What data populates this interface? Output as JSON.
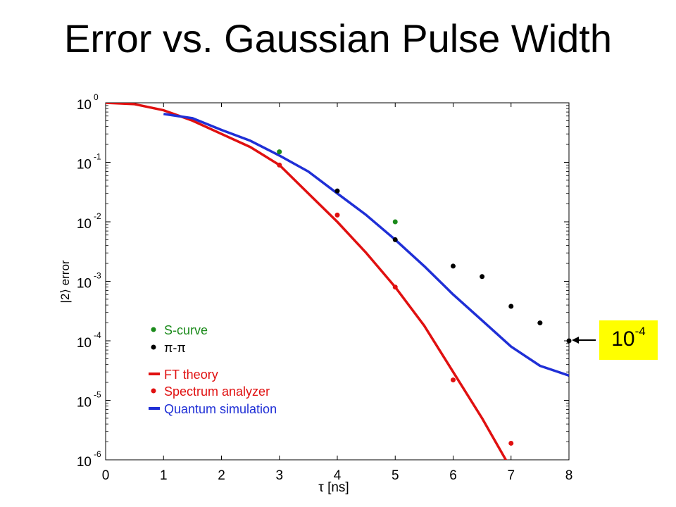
{
  "page": {
    "title": "Error vs. Gaussian Pulse Width"
  },
  "callout": {
    "base": "10",
    "exponent": "-4"
  },
  "colors": {
    "green": "#1a8a1a",
    "black": "#000000",
    "red": "#e01010",
    "blue": "#1f2fd6",
    "callout_bg": "#ffff00"
  },
  "chart_data": {
    "type": "scatter",
    "title": "",
    "xlabel": "τ [ns]",
    "ylabel": "|2⟩ error",
    "xlim": [
      0,
      8
    ],
    "ylim": [
      1e-06,
      1
    ],
    "yscale": "log",
    "grid": false,
    "legend_position": "lower-left",
    "x_ticks": [
      "0",
      "1",
      "2",
      "3",
      "4",
      "5",
      "6",
      "7",
      "8"
    ],
    "y_ticks": [
      {
        "base": "10",
        "exp": "0"
      },
      {
        "base": "10",
        "exp": "-1"
      },
      {
        "base": "10",
        "exp": "-2"
      },
      {
        "base": "10",
        "exp": "-3"
      },
      {
        "base": "10",
        "exp": "-4"
      },
      {
        "base": "10",
        "exp": "-5"
      },
      {
        "base": "10",
        "exp": "-6"
      }
    ],
    "series": [
      {
        "name": "S-curve",
        "kind": "points",
        "color": "#1a8a1a",
        "x": [
          3,
          5
        ],
        "y": [
          0.15,
          0.01
        ]
      },
      {
        "name": "π-π",
        "kind": "points",
        "color": "#000000",
        "x": [
          4,
          5,
          6,
          6.5,
          7,
          7.5,
          8
        ],
        "y": [
          0.033,
          0.005,
          0.0018,
          0.0012,
          0.00038,
          0.0002,
          0.0001
        ]
      },
      {
        "name": "FT theory",
        "kind": "line",
        "color": "#e01010",
        "x": [
          0,
          0.5,
          1,
          1.5,
          2,
          2.5,
          3,
          3.5,
          4,
          4.5,
          5,
          5.5,
          6,
          6.5,
          7
        ],
        "y": [
          1,
          0.95,
          0.75,
          0.5,
          0.3,
          0.18,
          0.09,
          0.03,
          0.01,
          0.003,
          0.0008,
          0.00018,
          3e-05,
          5e-06,
          7e-07
        ]
      },
      {
        "name": "Spectrum analyzer",
        "kind": "points",
        "color": "#e01010",
        "x": [
          3,
          4,
          5,
          6,
          7
        ],
        "y": [
          0.09,
          0.013,
          0.0008,
          2.2e-05,
          1.9e-06
        ]
      },
      {
        "name": "Quantum simulation",
        "kind": "line",
        "color": "#1f2fd6",
        "x": [
          1,
          1.5,
          2,
          2.5,
          3,
          3.5,
          4,
          4.5,
          5,
          5.5,
          6,
          6.5,
          7,
          7.5,
          8
        ],
        "y": [
          0.65,
          0.55,
          0.35,
          0.23,
          0.13,
          0.07,
          0.03,
          0.013,
          0.005,
          0.0018,
          0.0006,
          0.00022,
          8e-05,
          3.8e-05,
          2.6e-05
        ]
      }
    ]
  }
}
